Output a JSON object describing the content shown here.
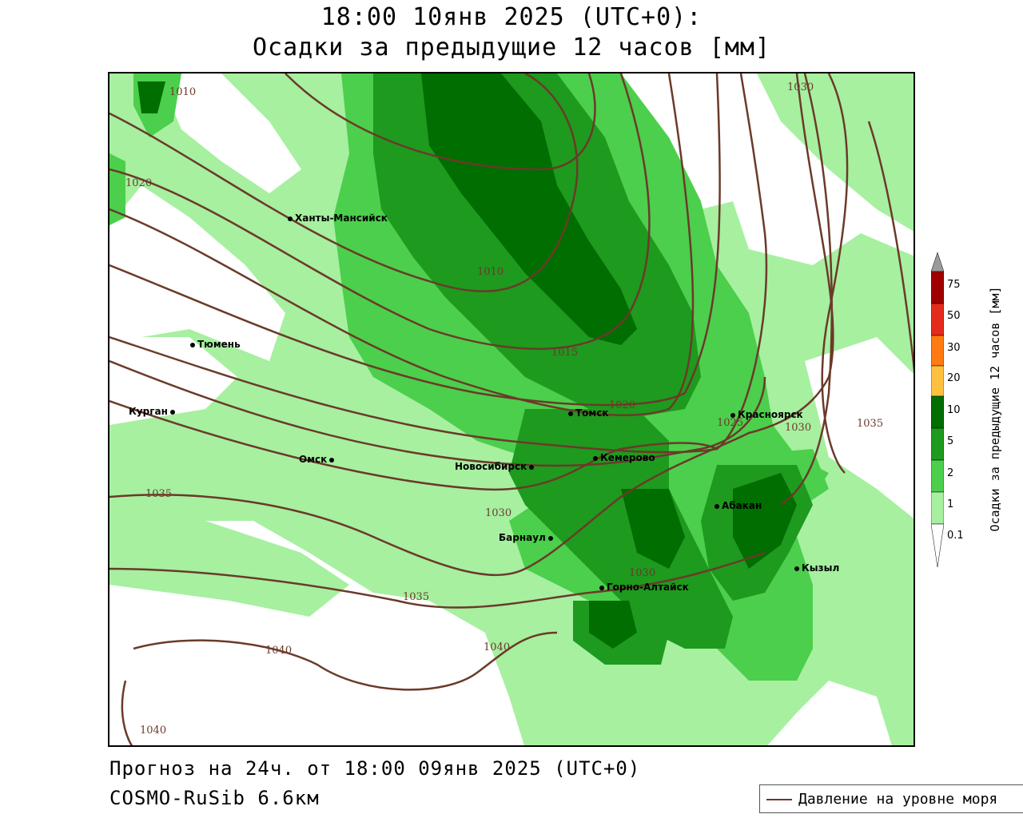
{
  "title_line1": "18:00 10янв 2025 (UTC+0):",
  "title_line2": "Осадки за предыдущие 12 часов [мм]",
  "forecast_text": "Прогноз на 24ч. от 18:00 09янв 2025 (UTC+0)",
  "model_text": "COSMO-RuSib 6.6км",
  "pressure_legend_label": "Давление на уровне моря",
  "colorbar": {
    "title": "Осадки за предыдущие 12 часов [мм]",
    "levels": [
      "75",
      "50",
      "30",
      "20",
      "10",
      "5",
      "2",
      "1",
      "0.1"
    ],
    "colors": [
      "#9a9a9a",
      "#a00000",
      "#e52b1b",
      "#ff7a10",
      "#ffc040",
      "#006e00",
      "#1e9a1e",
      "#4ccf4c",
      "#a6f0a0",
      "#ffffff"
    ]
  },
  "cities": [
    {
      "name": "Ханты-Мансийск"
    },
    {
      "name": "Тюмень"
    },
    {
      "name": "Курган"
    },
    {
      "name": "Омск"
    },
    {
      "name": "Новосибирск"
    },
    {
      "name": "Томск"
    },
    {
      "name": "Кемерово"
    },
    {
      "name": "Барнаул"
    },
    {
      "name": "Горно-Алтайск"
    },
    {
      "name": "Абакан"
    },
    {
      "name": "Кызыл"
    },
    {
      "name": "Красноярск"
    }
  ],
  "isobar_labels": [
    "1010",
    "1020",
    "1010",
    "1015",
    "1020",
    "1025",
    "1030",
    "1035",
    "1030",
    "1035",
    "1035",
    "1030",
    "1040",
    "1040",
    "1040",
    "1030"
  ]
}
